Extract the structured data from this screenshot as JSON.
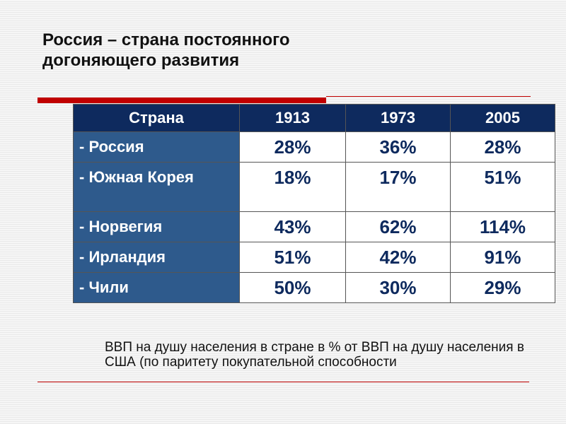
{
  "title_line1": "Россия – страна постоянного",
  "title_line2": "догоняющего развития",
  "table": {
    "headers": [
      "Страна",
      "1913",
      "1973",
      "2005"
    ],
    "rows": [
      {
        "country": "- Россия",
        "v1913": "28%",
        "v1973": "36%",
        "v2005": "28%"
      },
      {
        "country": "- Южная Корея",
        "v1913": "18%",
        "v1973": "17%",
        "v2005": "51%"
      },
      {
        "country": "- Норвегия",
        "v1913": "43%",
        "v1973": "62%",
        "v2005": "114%"
      },
      {
        "country": "- Ирландия",
        "v1913": "51%",
        "v1973": "42%",
        "v2005": "91%"
      },
      {
        "country": "- Чили",
        "v1913": "50%",
        "v1973": "30%",
        "v2005": "29%"
      }
    ]
  },
  "note": "ВВП на душу населения в стране в % от ВВП на душу населения в США (по паритету покупательной способности",
  "colors": {
    "header_bg": "#0e2a5e",
    "country_bg": "#2e5a8c",
    "value_text": "#0e2a5e",
    "accent_red": "#c00000"
  }
}
